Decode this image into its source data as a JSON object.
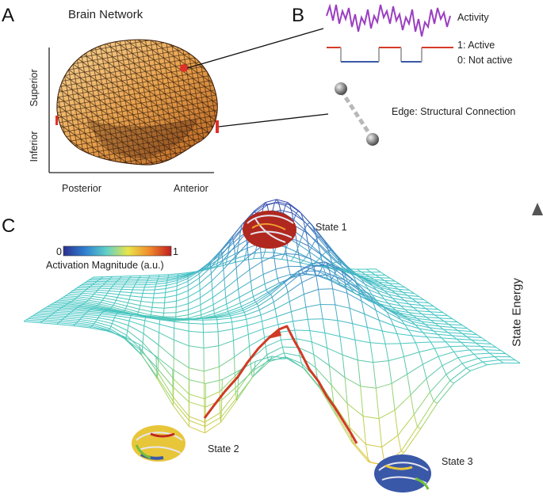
{
  "panels": {
    "a": {
      "letter": "A",
      "title": "Brain Network",
      "axis_superior": "Superior",
      "axis_inferior": "Inferior",
      "axis_posterior": "Posterior",
      "axis_anterior": "Anterior"
    },
    "b": {
      "letter": "B",
      "activity_label": "Activity",
      "active_label": "1: Active",
      "inactive_label": "0: Not active",
      "edge_label": "Edge: Structural Connection"
    },
    "c": {
      "letter": "C",
      "colorbar_min": "0",
      "colorbar_max": "1",
      "colorbar_label": "Activation Magnitude (a.u.)",
      "state1": "State 1",
      "state2": "State 2",
      "state3": "State 3",
      "energy_label": "State Energy"
    }
  },
  "colors": {
    "activity": "#9b3fc1",
    "active_line": "#d63a2a",
    "inactive_line": "#3a58a8",
    "node": "#e0302a",
    "path": "#d03a24",
    "mesh_low": "#46c6c4",
    "mesh_high": "#3a4fb0"
  }
}
